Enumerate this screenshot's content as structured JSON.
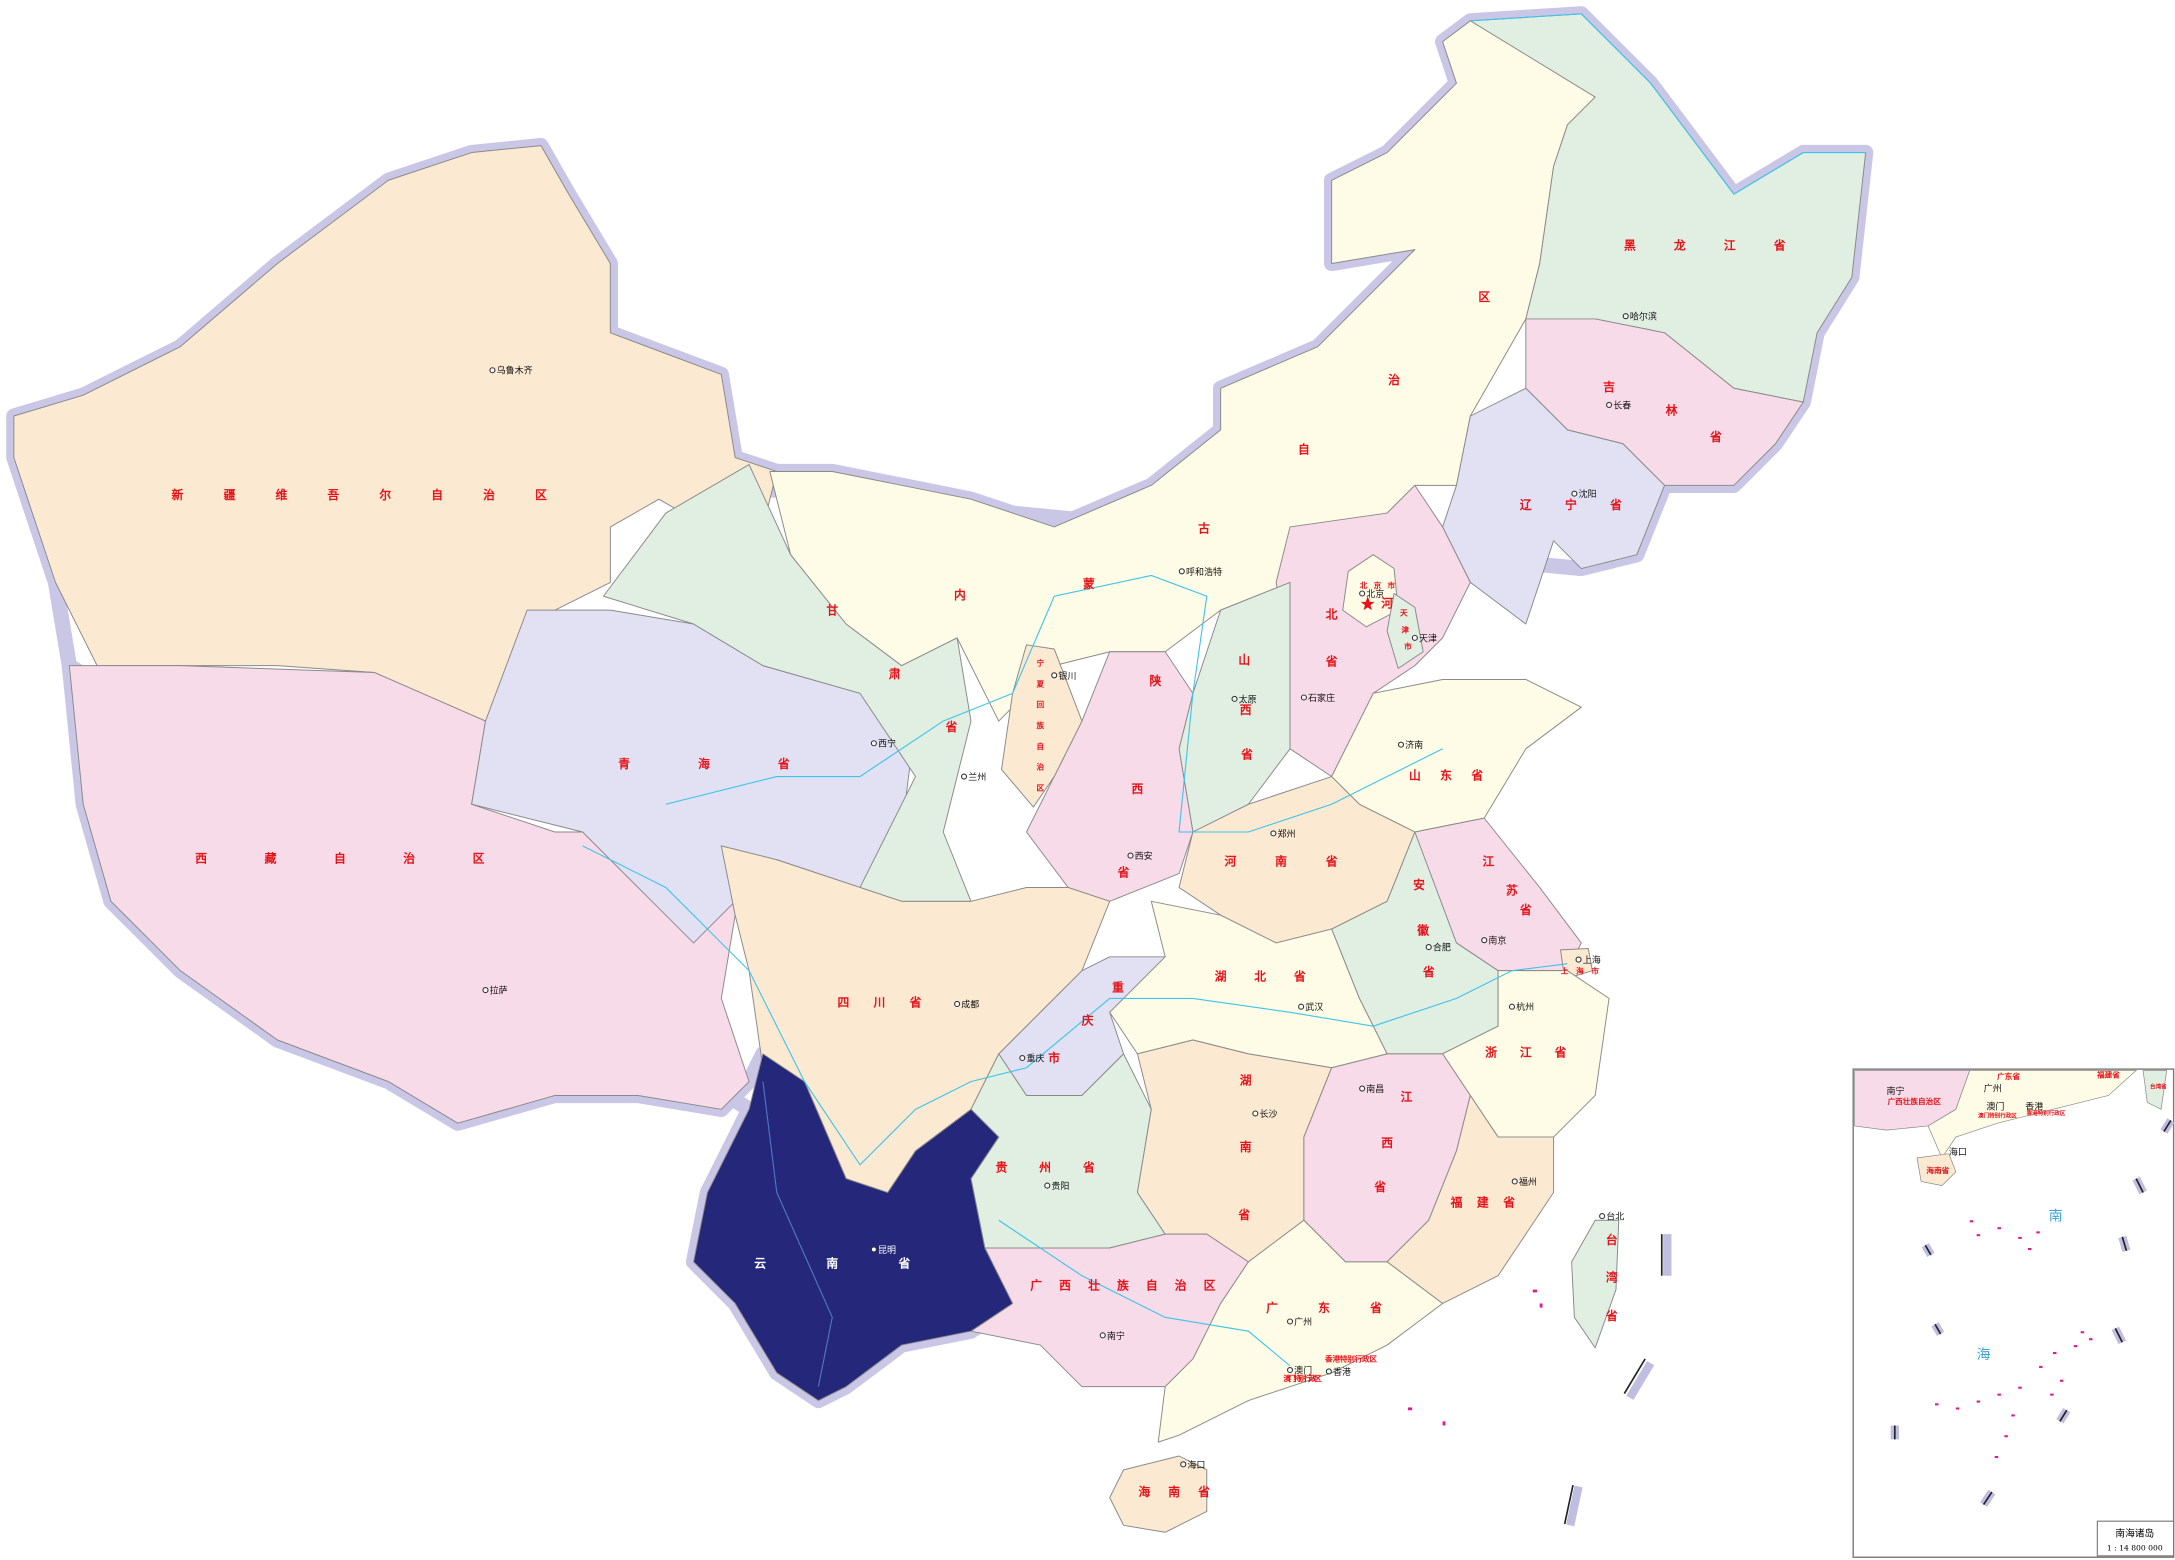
{
  "colors": {
    "highlight": "#25287a",
    "peach": "#fbe9d2",
    "pink": "#f8dbe8",
    "lavender": "#e1e1f3",
    "green": "#e1eee2",
    "cream": "#fefce6",
    "label_red": "#e5141b",
    "river": "#3ec3ea",
    "border_halo": "#c9c6e6"
  },
  "highlighted_province": "云南省",
  "provinces": [
    "新疆维吾尔自治区",
    "西藏自治区",
    "青海省",
    "甘肃省",
    "内蒙古自治区",
    "黑龙江省",
    "吉林省",
    "辽宁省",
    "北京市",
    "天津市",
    "河北省",
    "山西省",
    "陕西省",
    "宁夏回族自治区",
    "山东省",
    "河南省",
    "江苏省",
    "安徽省",
    "上海市",
    "湖北省",
    "重庆市",
    "四川省",
    "浙江省",
    "湖南省",
    "江西省",
    "福建省",
    "贵州省",
    "云南省",
    "广西壮族自治区",
    "广东省",
    "海南省",
    "台湾省",
    "澳门特别行政区",
    "香港特别行政区"
  ],
  "cities": [
    "乌鲁木齐",
    "西宁",
    "兰州",
    "银川",
    "呼和浩特",
    "太原",
    "石家庄",
    "济南",
    "郑州",
    "西安",
    "拉萨",
    "成都",
    "重庆",
    "南京",
    "上海",
    "合肥",
    "杭州",
    "武汉",
    "南昌",
    "长沙",
    "贵阳",
    "昆明",
    "南宁",
    "广州",
    "澳门",
    "香港",
    "福州",
    "台北",
    "海口",
    "哈尔滨",
    "长春",
    "沈阳",
    "北京",
    "天津"
  ],
  "inset": {
    "sea_chars": [
      "南",
      "海"
    ],
    "title": "南海诸岛",
    "scale": "1 : 14 800 000",
    "labels": [
      "南宁",
      "广西壮族自治区",
      "广州",
      "广东省",
      "澳门",
      "香港",
      "澳门特别行政区",
      "香港特别行政区",
      "海口",
      "海南省",
      "福建省",
      "台湾省"
    ]
  }
}
